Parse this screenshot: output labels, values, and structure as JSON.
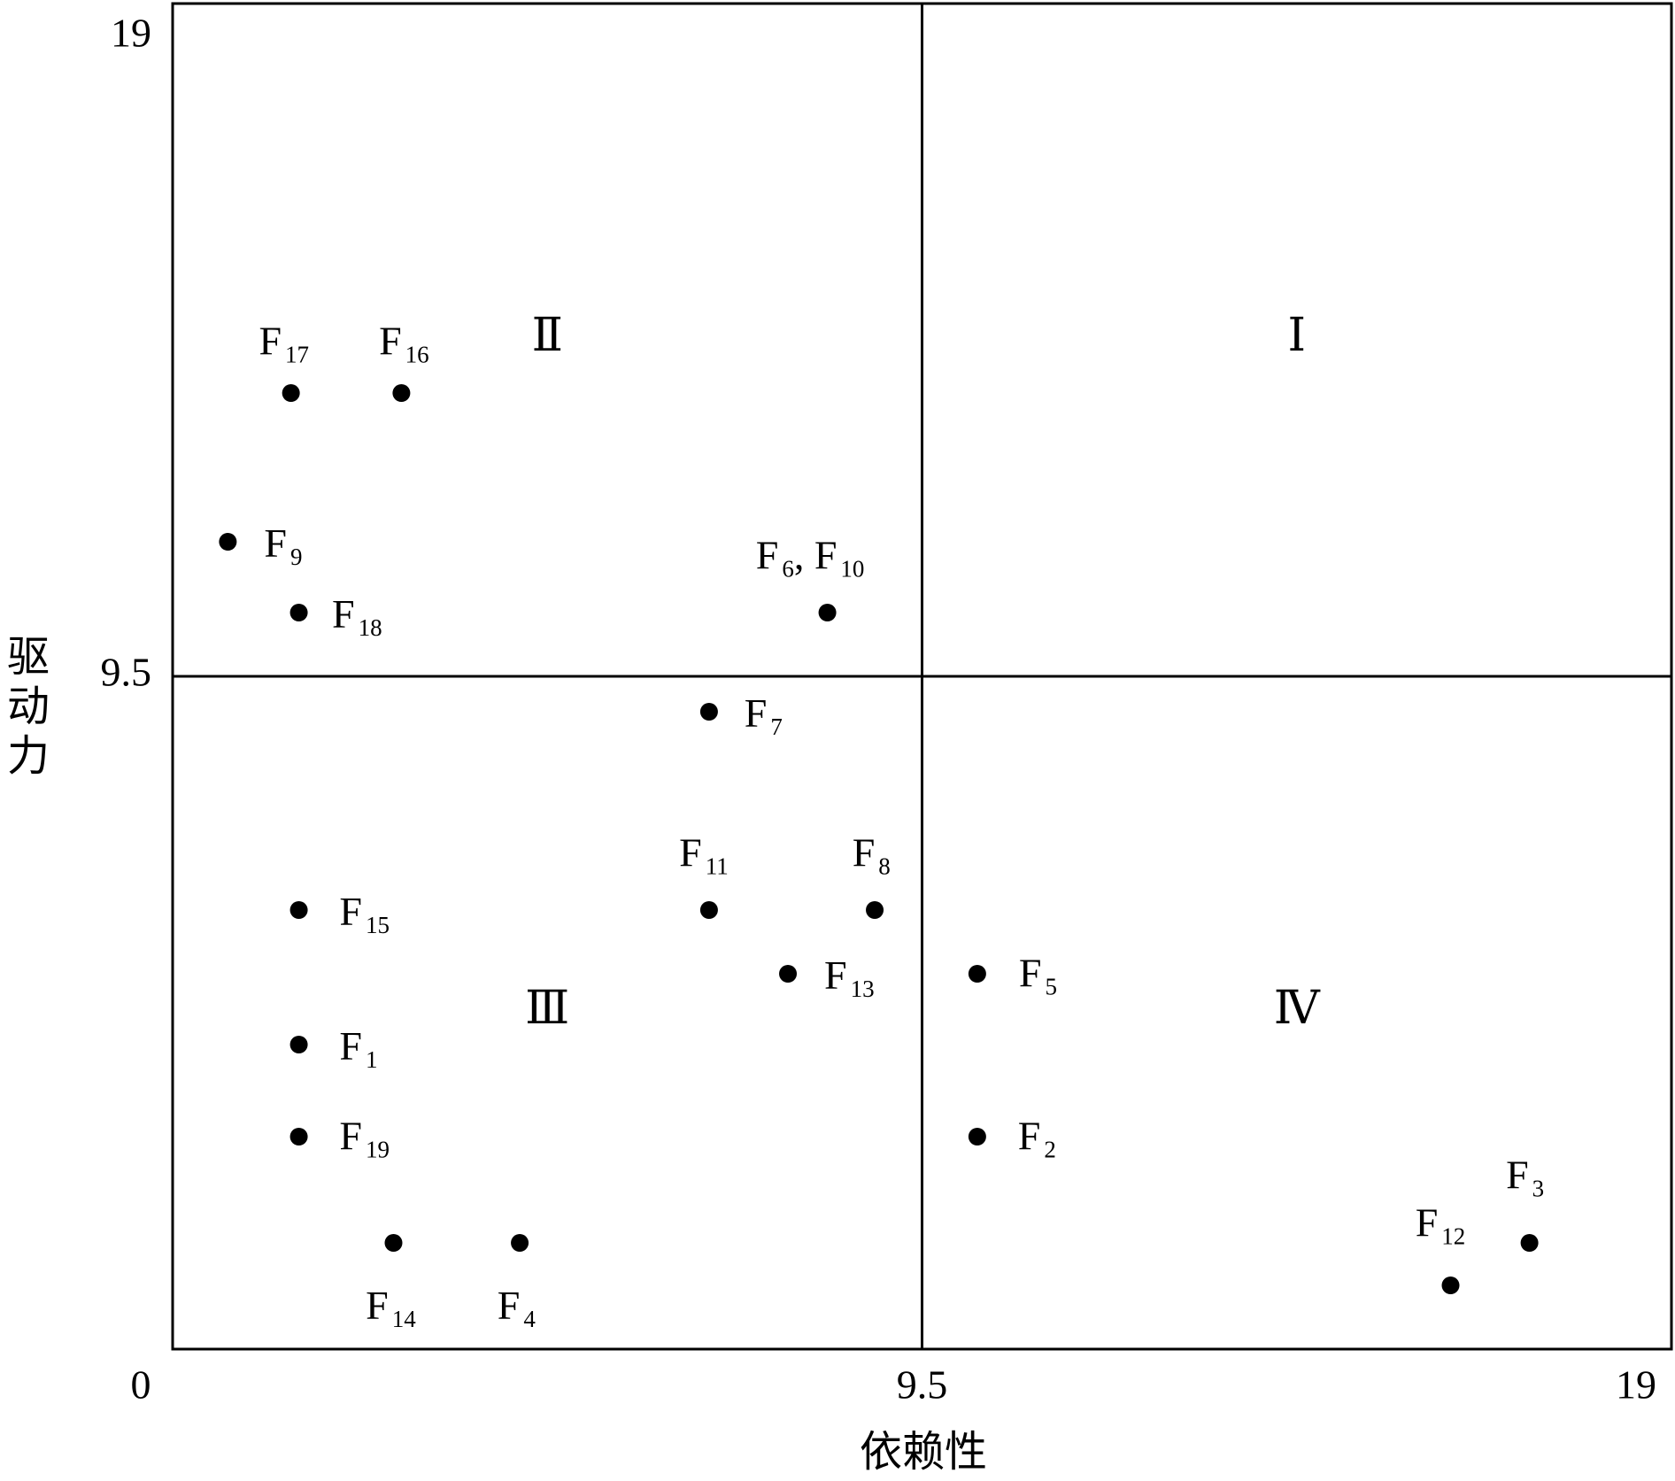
{
  "chart_data": {
    "type": "scatter",
    "x_label": "依赖性",
    "y_label": "驱动力",
    "xlim": [
      0,
      19
    ],
    "ylim": [
      0,
      19
    ],
    "xticks": [
      0,
      9.5,
      19
    ],
    "yticks": [
      9.5,
      19
    ],
    "color": "#000000",
    "quadrant_labels": [
      "Ⅰ",
      "Ⅱ",
      "Ⅲ",
      "Ⅳ"
    ],
    "points": [
      {
        "x": 1.5,
        "y": 13.5,
        "label": [
          "F",
          "17"
        ]
      },
      {
        "x": 2.9,
        "y": 13.5,
        "label": [
          "F",
          "16"
        ]
      },
      {
        "x": 0.7,
        "y": 11.4,
        "label": [
          "F",
          "9"
        ]
      },
      {
        "x": 1.6,
        "y": 10.4,
        "label": [
          "F",
          "18"
        ]
      },
      {
        "x": 8.3,
        "y": 10.4,
        "label": [
          "F",
          "6",
          ", F",
          "10"
        ]
      },
      {
        "x": 6.8,
        "y": 9.0,
        "label": [
          "F",
          "7"
        ]
      },
      {
        "x": 6.8,
        "y": 6.2,
        "label": [
          "F",
          "11"
        ]
      },
      {
        "x": 8.9,
        "y": 6.2,
        "label": [
          "F",
          "8"
        ]
      },
      {
        "x": 1.6,
        "y": 6.2,
        "label": [
          "F",
          "15"
        ]
      },
      {
        "x": 7.8,
        "y": 5.3,
        "label": [
          "F",
          "13"
        ]
      },
      {
        "x": 10.2,
        "y": 5.3,
        "label": [
          "F",
          "5"
        ]
      },
      {
        "x": 1.6,
        "y": 4.3,
        "label": [
          "F",
          "1"
        ]
      },
      {
        "x": 1.6,
        "y": 3.0,
        "label": [
          "F",
          "19"
        ]
      },
      {
        "x": 10.2,
        "y": 3.0,
        "label": [
          "F",
          "2"
        ]
      },
      {
        "x": 2.8,
        "y": 1.5,
        "label": [
          "F",
          "14"
        ]
      },
      {
        "x": 4.4,
        "y": 1.5,
        "label": [
          "F",
          "4"
        ]
      },
      {
        "x": 17.2,
        "y": 1.5,
        "label": [
          "F",
          "3"
        ]
      },
      {
        "x": 16.2,
        "y": 0.9,
        "label": [
          "F",
          "12"
        ]
      }
    ]
  }
}
